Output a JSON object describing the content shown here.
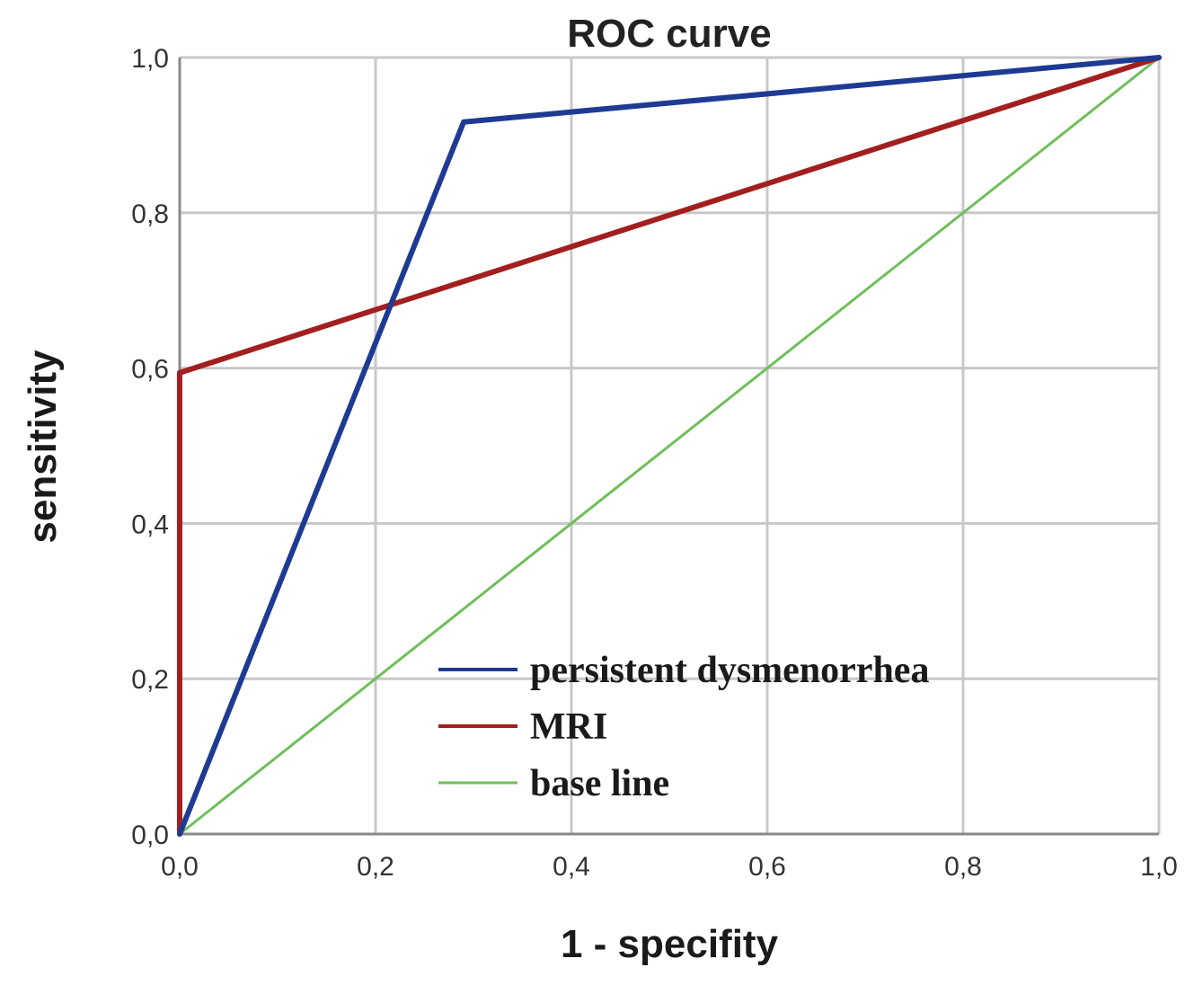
{
  "chart_data": {
    "type": "line",
    "title": "ROC curve",
    "xlabel": "1 - specifity",
    "ylabel": "sensitivity",
    "xlim": [
      0,
      1
    ],
    "ylim": [
      0,
      1
    ],
    "grid": true,
    "x_ticks": [
      0,
      0.2,
      0.4,
      0.6,
      0.8,
      1.0
    ],
    "y_ticks": [
      0,
      0.2,
      0.4,
      0.6,
      0.8,
      1.0
    ],
    "x_tick_labels": [
      "0,0",
      "0,2",
      "0,4",
      "0,6",
      "0,8",
      "1,0"
    ],
    "y_tick_labels": [
      "0,0",
      "0,2",
      "0,4",
      "0,6",
      "0,8",
      "1,0"
    ],
    "legend_position": "bottom-right",
    "series": [
      {
        "name": "persistent dysmenorrhea",
        "color": "#1f3a93",
        "x": [
          0,
          0.29,
          1
        ],
        "y": [
          0,
          0.917,
          1
        ]
      },
      {
        "name": "MRI",
        "color": "#a31f1f",
        "x": [
          0,
          0,
          1
        ],
        "y": [
          0,
          0.594,
          1
        ]
      },
      {
        "name": "base line",
        "color": "#6fbf5a",
        "x": [
          0,
          1
        ],
        "y": [
          0,
          1
        ]
      }
    ]
  }
}
